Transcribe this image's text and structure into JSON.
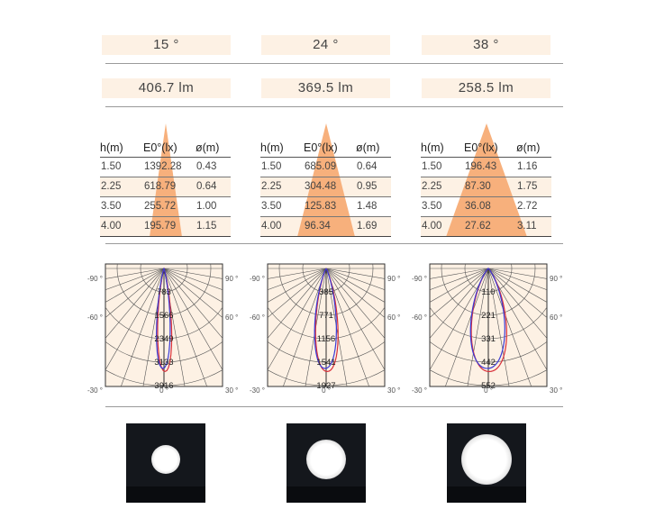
{
  "beams": [
    {
      "angle_label": "15 °",
      "lumen_label": "406.7 lm",
      "table": {
        "headers": [
          "h(m)",
          "E0°(lx)",
          "ø(m)"
        ],
        "rows": [
          [
            "1.50",
            "1392.28",
            "0.43"
          ],
          [
            "2.25",
            "618.79",
            "0.64"
          ],
          [
            "3.50",
            "255.72",
            "1.00"
          ],
          [
            "4.00",
            "195.79",
            "1.15"
          ]
        ]
      },
      "polar": {
        "angle_labels": {
          "left_90": "-90 °",
          "left_60": "-60 °",
          "left_30": "-30 °",
          "bottom_0": "0 °",
          "right_90": "90 °",
          "right_60": "60 °",
          "right_30": "30 °"
        },
        "radial_labels": [
          "783",
          "1566",
          "2349",
          "3133",
          "3916"
        ],
        "half_width_deg": 7.5
      },
      "photo": {
        "spot_diameter_fraction": 0.36
      }
    },
    {
      "angle_label": "24 °",
      "lumen_label": "369.5 lm",
      "table": {
        "headers": [
          "h(m)",
          "E0°(lx)",
          "ø(m)"
        ],
        "rows": [
          [
            "1.50",
            "685.09",
            "0.64"
          ],
          [
            "2.25",
            "304.48",
            "0.95"
          ],
          [
            "3.50",
            "125.83",
            "1.48"
          ],
          [
            "4.00",
            "96.34",
            "1.69"
          ]
        ]
      },
      "polar": {
        "angle_labels": {
          "left_90": "-90 °",
          "left_60": "-60 °",
          "left_30": "-30 °",
          "bottom_0": "0 °",
          "right_90": "90 °",
          "right_60": "60 °",
          "right_30": "30 °"
        },
        "radial_labels": [
          "385",
          "771",
          "1156",
          "1541",
          "1927"
        ],
        "half_width_deg": 12
      },
      "photo": {
        "spot_diameter_fraction": 0.5
      }
    },
    {
      "angle_label": "38 °",
      "lumen_label": "258.5 lm",
      "table": {
        "headers": [
          "h(m)",
          "E0°(lx)",
          "ø(m)"
        ],
        "rows": [
          [
            "1.50",
            "196.43",
            "1.16"
          ],
          [
            "2.25",
            "87.30",
            "1.75"
          ],
          [
            "3.50",
            "36.08",
            "2.72"
          ],
          [
            "4.00",
            "27.62",
            "3.11"
          ]
        ]
      },
      "polar": {
        "angle_labels": {
          "left_90": "-90 °",
          "left_60": "-60 °",
          "left_30": "-30 °",
          "bottom_0": "0 °",
          "right_90": "90 °",
          "right_60": "60 °",
          "right_30": "30 °"
        },
        "radial_labels": [
          "110",
          "221",
          "331",
          "442",
          "552"
        ],
        "half_width_deg": 19
      },
      "photo": {
        "spot_diameter_fraction": 0.64
      }
    }
  ],
  "colors": {
    "cell_bg": "#fdf1e4",
    "cone": "#f7b07c",
    "polar_fill": "#fdf1e4",
    "polar_grid": "#555555",
    "curve_red": "#d9303a",
    "curve_blue": "#3a3ad6"
  }
}
